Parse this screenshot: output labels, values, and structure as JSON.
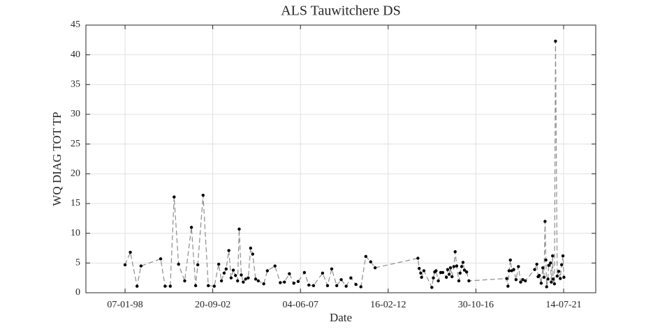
{
  "chart_data": {
    "type": "line",
    "title": "ALS Tauwitchere DS",
    "xlabel": "Date",
    "ylabel": "WQ DIAG TOT TP",
    "color": "#000000",
    "line_color": "#8c8c8c",
    "line_style": "dashed",
    "grid": true,
    "xlim": [
      "1995-12-02",
      "2023-04-04"
    ],
    "xticks": [
      {
        "value": "1998-01-07",
        "label": "07-01-98"
      },
      {
        "value": "2002-09-20",
        "label": "20-09-02"
      },
      {
        "value": "2007-06-04",
        "label": "04-06-07"
      },
      {
        "value": "2012-02-16",
        "label": "16-02-12"
      },
      {
        "value": "2016-10-30",
        "label": "30-10-16"
      },
      {
        "value": "2021-07-14",
        "label": "14-07-21"
      }
    ],
    "ylim": [
      0,
      45
    ],
    "yticks": [
      0,
      5,
      10,
      15,
      20,
      25,
      30,
      35,
      40,
      45
    ],
    "x": [
      "1998-01-07",
      "1998-04-20",
      "1998-08-30",
      "1998-11-15",
      "1999-12-05",
      "2000-03-01",
      "2000-06-10",
      "2000-08-25",
      "2000-11-20",
      "2001-03-20",
      "2001-07-30",
      "2001-10-20",
      "2001-12-01",
      "2002-03-15",
      "2002-06-25",
      "2002-10-20",
      "2003-01-15",
      "2003-03-10",
      "2003-05-01",
      "2003-06-10",
      "2003-08-01",
      "2003-09-15",
      "2003-10-28",
      "2003-12-10",
      "2004-01-20",
      "2004-02-20",
      "2004-04-01",
      "2004-05-10",
      "2004-06-25",
      "2004-08-15",
      "2004-10-01",
      "2004-11-10",
      "2005-01-07",
      "2005-02-28",
      "2005-06-15",
      "2005-08-25",
      "2006-01-20",
      "2006-05-05",
      "2006-07-25",
      "2006-10-30",
      "2007-01-25",
      "2007-04-20",
      "2007-08-20",
      "2007-11-15",
      "2008-02-15",
      "2008-08-10",
      "2008-11-15",
      "2009-02-05",
      "2009-05-15",
      "2009-08-10",
      "2009-11-15",
      "2010-02-15",
      "2010-05-25",
      "2010-08-30",
      "2010-12-05",
      "2011-03-10",
      "2011-06-05",
      "2013-09-20",
      "2013-10-15",
      "2013-11-15",
      "2013-12-01",
      "2014-01-15",
      "2014-06-20",
      "2014-07-20",
      "2014-08-15",
      "2014-09-10",
      "2014-10-25",
      "2014-12-10",
      "2015-01-20",
      "2015-04-01",
      "2015-04-25",
      "2015-05-25",
      "2015-06-20",
      "2015-07-20",
      "2015-08-25",
      "2015-09-20",
      "2015-10-20",
      "2015-12-01",
      "2015-12-25",
      "2016-01-25",
      "2016-02-20",
      "2016-03-20",
      "2016-05-01",
      "2016-06-15",
      "2018-06-25",
      "2018-07-20",
      "2018-08-10",
      "2018-09-05",
      "2018-10-01",
      "2018-11-10",
      "2018-12-25",
      "2019-02-10",
      "2019-03-25",
      "2019-05-05",
      "2019-06-25",
      "2019-12-25",
      "2020-02-05",
      "2020-03-01",
      "2020-03-25",
      "2020-05-01",
      "2020-06-01",
      "2020-06-25",
      "2020-07-15",
      "2020-08-01",
      "2020-08-15",
      "2020-09-10",
      "2020-09-25",
      "2020-10-30",
      "2020-11-15",
      "2020-12-10",
      "2020-12-20",
      "2021-01-15",
      "2021-02-05",
      "2021-03-10",
      "2021-04-10",
      "2021-05-10",
      "2021-06-05",
      "2021-07-01",
      "2021-07-20"
    ],
    "values": [
      4.7,
      6.8,
      1.1,
      4.5,
      5.7,
      1.1,
      1.1,
      16.1,
      4.8,
      2.0,
      11.0,
      1.2,
      4.7,
      16.4,
      1.2,
      1.1,
      4.8,
      2.0,
      3.3,
      4.0,
      7.1,
      2.5,
      3.8,
      2.9,
      2.0,
      10.7,
      3.0,
      1.8,
      2.3,
      2.5,
      7.5,
      6.5,
      2.3,
      2.0,
      1.5,
      3.7,
      4.5,
      1.7,
      1.8,
      3.2,
      1.6,
      1.9,
      3.4,
      1.3,
      1.2,
      3.3,
      1.2,
      4.0,
      1.2,
      2.2,
      1.1,
      2.5,
      1.4,
      1.0,
      6.1,
      5.2,
      4.2,
      5.8,
      4.1,
      3.3,
      2.6,
      3.7,
      0.9,
      2.5,
      3.5,
      3.7,
      2.0,
      3.4,
      3.4,
      2.6,
      3.9,
      3.1,
      4.2,
      2.7,
      4.4,
      6.9,
      4.5,
      2.0,
      3.3,
      4.4,
      5.1,
      3.8,
      3.5,
      2.0,
      2.4,
      1.1,
      3.7,
      5.5,
      3.7,
      3.9,
      2.2,
      4.4,
      1.8,
      2.2,
      2.0,
      3.9,
      4.8,
      2.7,
      2.9,
      1.6,
      4.2,
      2.6,
      12.0,
      5.5,
      1.0,
      2.3,
      4.6,
      5.0,
      1.8,
      6.2,
      2.3,
      1.5,
      42.3,
      2.8,
      3.6,
      2.4,
      4.7,
      6.2,
      2.6
    ]
  }
}
